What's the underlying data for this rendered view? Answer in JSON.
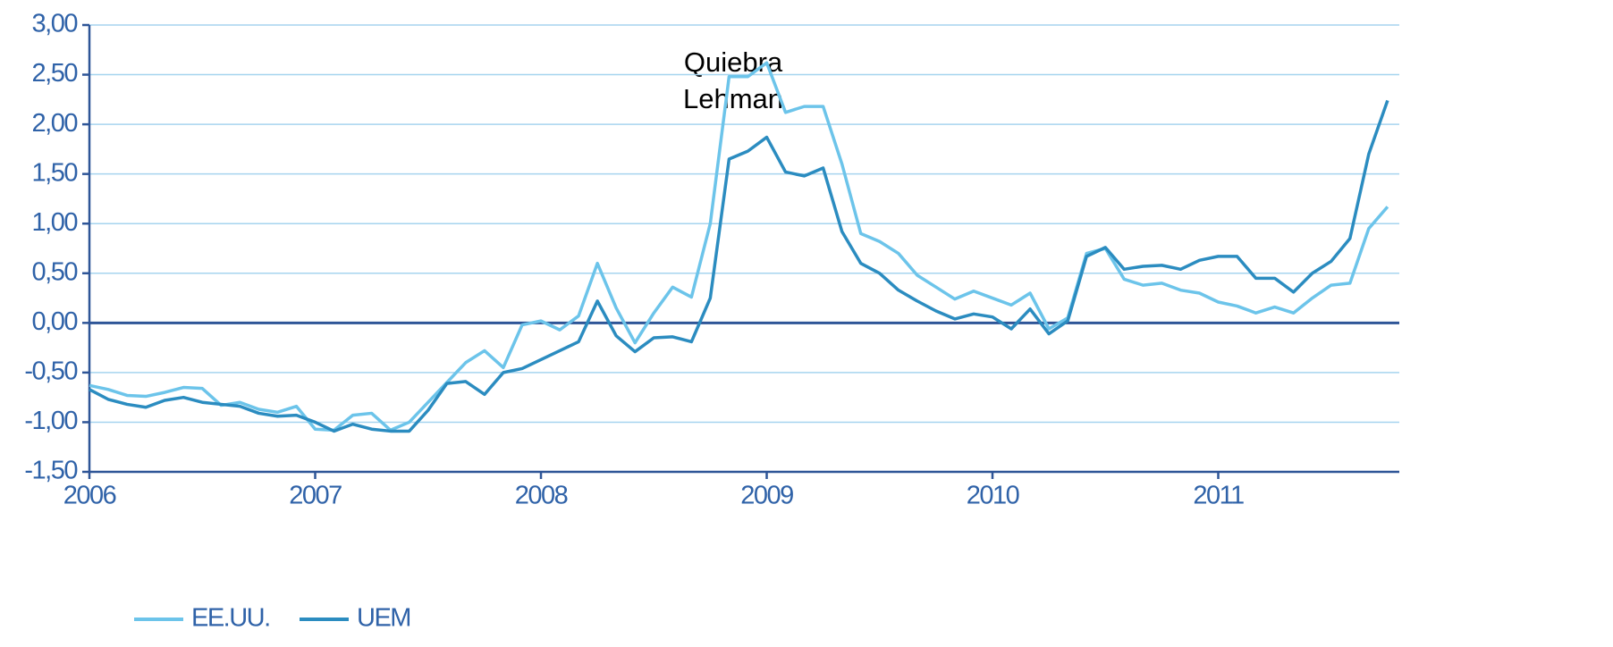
{
  "chart_data": {
    "type": "line",
    "categories": [
      "2006",
      null,
      null,
      null,
      null,
      null,
      null,
      null,
      null,
      null,
      null,
      null,
      "2007",
      null,
      null,
      null,
      null,
      null,
      null,
      null,
      null,
      null,
      null,
      null,
      "2008",
      null,
      null,
      null,
      null,
      null,
      null,
      null,
      null,
      null,
      null,
      null,
      "2009",
      null,
      null,
      null,
      null,
      null,
      null,
      null,
      null,
      null,
      null,
      null,
      "2010",
      null,
      null,
      null,
      null,
      null,
      null,
      null,
      null,
      null,
      null,
      null,
      "2011",
      null,
      null,
      null,
      null,
      null,
      null,
      null,
      null,
      null
    ],
    "series": [
      {
        "name": "EE.UU.",
        "color": "#6cc4ea",
        "values": [
          -0.63,
          -0.67,
          -0.73,
          -0.74,
          -0.7,
          -0.65,
          -0.66,
          -0.83,
          -0.8,
          -0.87,
          -0.9,
          -0.84,
          -1.07,
          -1.08,
          -0.93,
          -0.91,
          -1.08,
          -1.0,
          -0.8,
          -0.6,
          -0.4,
          -0.28,
          -0.45,
          -0.02,
          0.02,
          -0.07,
          0.07,
          0.6,
          0.15,
          -0.2,
          0.1,
          0.36,
          0.26,
          1.0,
          2.48,
          2.48,
          2.62,
          2.12,
          2.18,
          2.18,
          1.6,
          0.9,
          0.82,
          0.7,
          0.48,
          0.36,
          0.24,
          0.32,
          0.25,
          0.18,
          0.3,
          -0.06,
          0.05,
          0.7,
          0.75,
          0.44,
          0.38,
          0.4,
          0.33,
          0.3,
          0.21,
          0.17,
          0.1,
          0.16,
          0.1,
          0.25,
          0.38,
          0.4,
          0.95,
          1.17
        ]
      },
      {
        "name": "UEM",
        "color": "#2b8cc0",
        "values": [
          -0.67,
          -0.77,
          -0.82,
          -0.85,
          -0.78,
          -0.75,
          -0.8,
          -0.82,
          -0.84,
          -0.91,
          -0.94,
          -0.93,
          -1.0,
          -1.09,
          -1.02,
          -1.07,
          -1.09,
          -1.09,
          -0.88,
          -0.61,
          -0.59,
          -0.72,
          -0.5,
          -0.46,
          -0.37,
          -0.28,
          -0.19,
          0.22,
          -0.13,
          -0.29,
          -0.15,
          -0.14,
          -0.19,
          0.25,
          1.65,
          1.73,
          1.87,
          1.52,
          1.48,
          1.56,
          0.92,
          0.6,
          0.5,
          0.33,
          0.22,
          0.12,
          0.04,
          0.09,
          0.06,
          -0.06,
          0.14,
          -0.11,
          0.02,
          0.67,
          0.76,
          0.54,
          0.57,
          0.58,
          0.54,
          0.63,
          0.67,
          0.67,
          0.45,
          0.45,
          0.31,
          0.5,
          0.62,
          0.85,
          1.7,
          2.24
        ]
      }
    ],
    "ylim": [
      -1.5,
      3
    ],
    "yticks": [
      {
        "value": 3,
        "label": "3,00"
      },
      {
        "value": 2.5,
        "label": "2,50"
      },
      {
        "value": 2,
        "label": "2,00"
      },
      {
        "value": 1.5,
        "label": "1,50"
      },
      {
        "value": 1,
        "label": "1,00"
      },
      {
        "value": 0.5,
        "label": "0,50"
      },
      {
        "value": 0,
        "label": "0,00"
      },
      {
        "value": -0.5,
        "label": "-0,50"
      },
      {
        "value": -1,
        "label": "-1,00"
      },
      {
        "value": -1.5,
        "label": "-1,50"
      }
    ],
    "grid": true,
    "annotation": [
      "Quiebra",
      "Lehman"
    ],
    "legend": "bottom-left"
  }
}
